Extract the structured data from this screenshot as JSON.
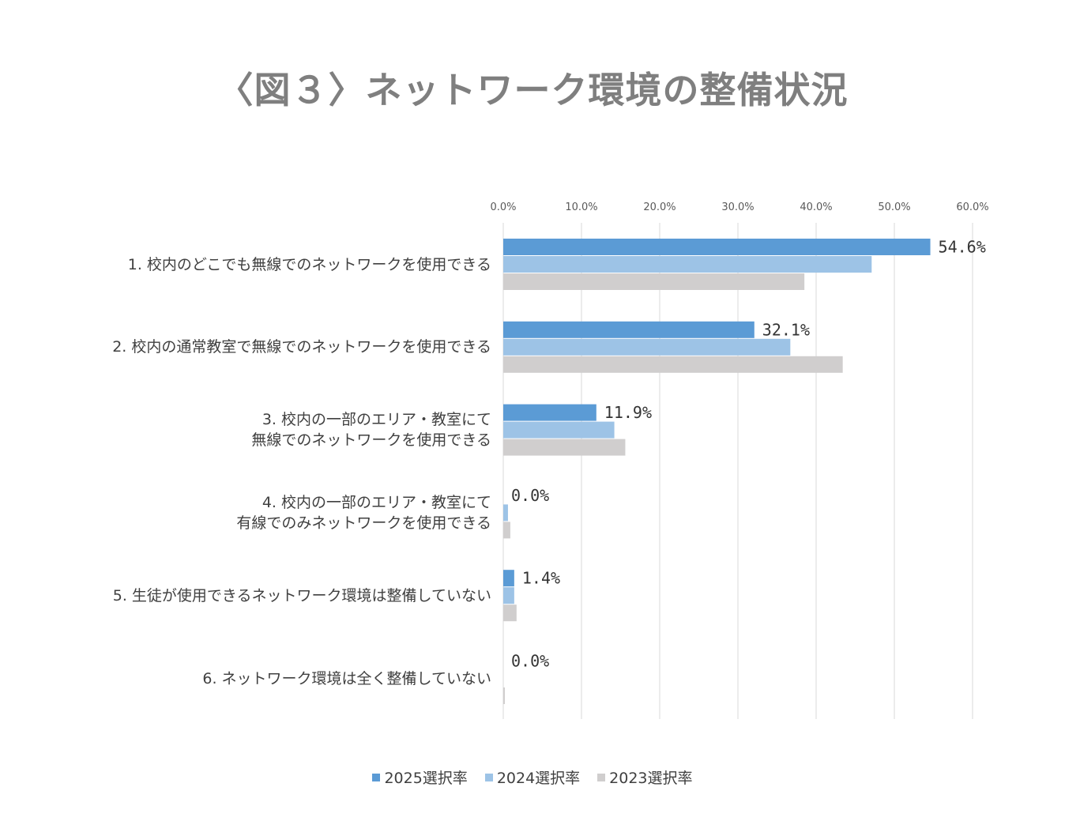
{
  "title": "〈図３〉ネットワーク環境の整備状況",
  "colors": {
    "series_2025": "#5b9bd5",
    "series_2024": "#9dc3e6",
    "series_2023": "#d0cece",
    "grid": "#d9d9d9",
    "axis_text": "#595959",
    "label_text": "#404040"
  },
  "chart_data": {
    "type": "bar",
    "orientation": "horizontal",
    "title": "〈図３〉ネットワーク環境の整備状況",
    "x_ticks": [
      "0.0%",
      "10.0%",
      "20.0%",
      "30.0%",
      "40.0%",
      "50.0%",
      "60.0%"
    ],
    "xlim": [
      0,
      60
    ],
    "x_axis_position": "top",
    "grid": true,
    "legend_position": "bottom",
    "categories": [
      [
        "1.  校内のどこでも無線でのネットワークを使用できる"
      ],
      [
        "2.  校内の通常教室で無線でのネットワークを使用できる"
      ],
      [
        "3.  校内の一部のエリア・教室にて",
        "無線でのネットワークを使用できる"
      ],
      [
        "4.  校内の一部のエリア・教室にて",
        "有線でのみネットワークを使用できる"
      ],
      [
        "5.  生徒が使用できるネットワーク環境は整備していない"
      ],
      [
        "6.  ネットワーク環境は全く整備していない"
      ]
    ],
    "series": [
      {
        "name": "2025選択率",
        "values": [
          54.6,
          32.1,
          11.9,
          0.0,
          1.4,
          0.0
        ],
        "data_labels": [
          "54.6%",
          "32.1%",
          "11.9%",
          "0.0%",
          "1.4%",
          "0.0%"
        ]
      },
      {
        "name": "2024選択率",
        "values": [
          47.1,
          36.7,
          14.2,
          0.6,
          1.4,
          0.0
        ]
      },
      {
        "name": "2023選択率",
        "values": [
          38.5,
          43.4,
          15.6,
          0.9,
          1.7,
          0.2
        ]
      }
    ]
  }
}
